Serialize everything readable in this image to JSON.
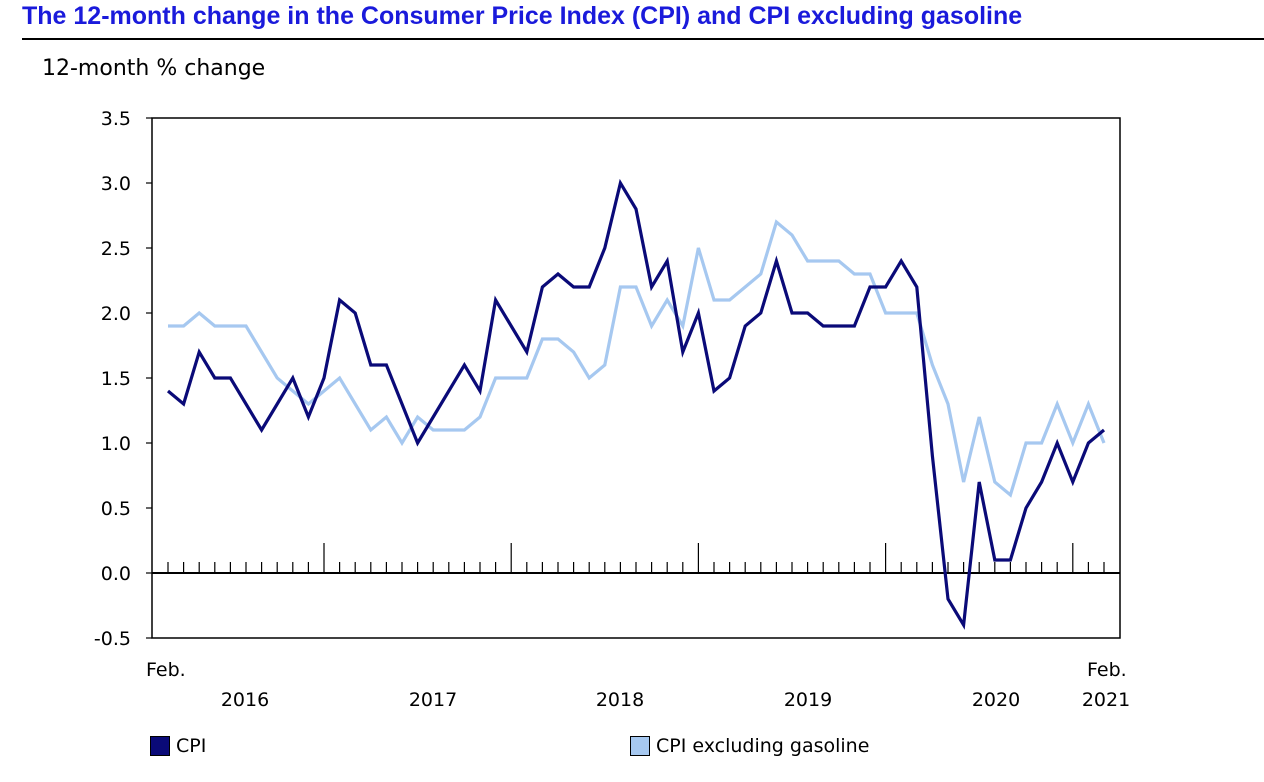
{
  "title": "The 12-month change in the Consumer Price Index (CPI) and CPI excluding gasoline",
  "colors": {
    "title": "#1a1adb",
    "cpi": "#0a0a78",
    "cpi_ex_gas": "#a6c8f0"
  },
  "chart_data": {
    "type": "line",
    "title": "The 12-month change in the Consumer Price Index (CPI) and CPI excluding gasoline",
    "ylabel": "12-month % change",
    "xlabel": "",
    "ylim": [
      -0.5,
      3.5
    ],
    "yticks": [
      "3.5",
      "3.0",
      "2.5",
      "2.0",
      "1.5",
      "1.0",
      "0.5",
      "0.0",
      "-0.5"
    ],
    "ytick_values": [
      3.5,
      3.0,
      2.5,
      2.0,
      1.5,
      1.0,
      0.5,
      0.0,
      -0.5
    ],
    "x_start": "Feb. 2016",
    "x_end": "Feb. 2021",
    "x_labels": {
      "start_month": "Feb.",
      "end_month": "Feb.",
      "years": [
        "2016",
        "2017",
        "2018",
        "2019",
        "2020",
        "2021"
      ]
    },
    "grid": false,
    "legend_position": "bottom",
    "series": [
      {
        "name": "CPI",
        "color": "#0a0a78",
        "values": [
          1.4,
          1.3,
          1.7,
          1.5,
          1.5,
          1.3,
          1.1,
          1.3,
          1.5,
          1.2,
          1.5,
          2.1,
          2.0,
          1.6,
          1.6,
          1.3,
          1.0,
          1.2,
          1.4,
          1.6,
          1.4,
          2.1,
          1.9,
          1.7,
          2.2,
          2.3,
          2.2,
          2.2,
          2.5,
          3.0,
          2.8,
          2.2,
          2.4,
          1.7,
          2.0,
          1.4,
          1.5,
          1.9,
          2.0,
          2.4,
          2.0,
          2.0,
          1.9,
          1.9,
          1.9,
          2.2,
          2.2,
          2.4,
          2.2,
          0.9,
          -0.2,
          -0.4,
          0.7,
          0.1,
          0.1,
          0.5,
          0.7,
          1.0,
          0.7,
          1.0,
          1.1
        ]
      },
      {
        "name": "CPI excluding gasoline",
        "color": "#a6c8f0",
        "values": [
          1.9,
          1.9,
          2.0,
          1.9,
          1.9,
          1.9,
          1.7,
          1.5,
          1.4,
          1.3,
          1.4,
          1.5,
          1.3,
          1.1,
          1.2,
          1.0,
          1.2,
          1.1,
          1.1,
          1.1,
          1.2,
          1.5,
          1.5,
          1.5,
          1.8,
          1.8,
          1.7,
          1.5,
          1.6,
          2.2,
          2.2,
          1.9,
          2.1,
          1.9,
          2.5,
          2.1,
          2.1,
          2.2,
          2.3,
          2.7,
          2.6,
          2.4,
          2.4,
          2.4,
          2.3,
          2.3,
          2.0,
          2.0,
          2.0,
          1.6,
          1.3,
          0.7,
          1.2,
          0.7,
          0.6,
          1.0,
          1.0,
          1.3,
          1.0,
          1.3,
          1.0
        ]
      }
    ]
  }
}
